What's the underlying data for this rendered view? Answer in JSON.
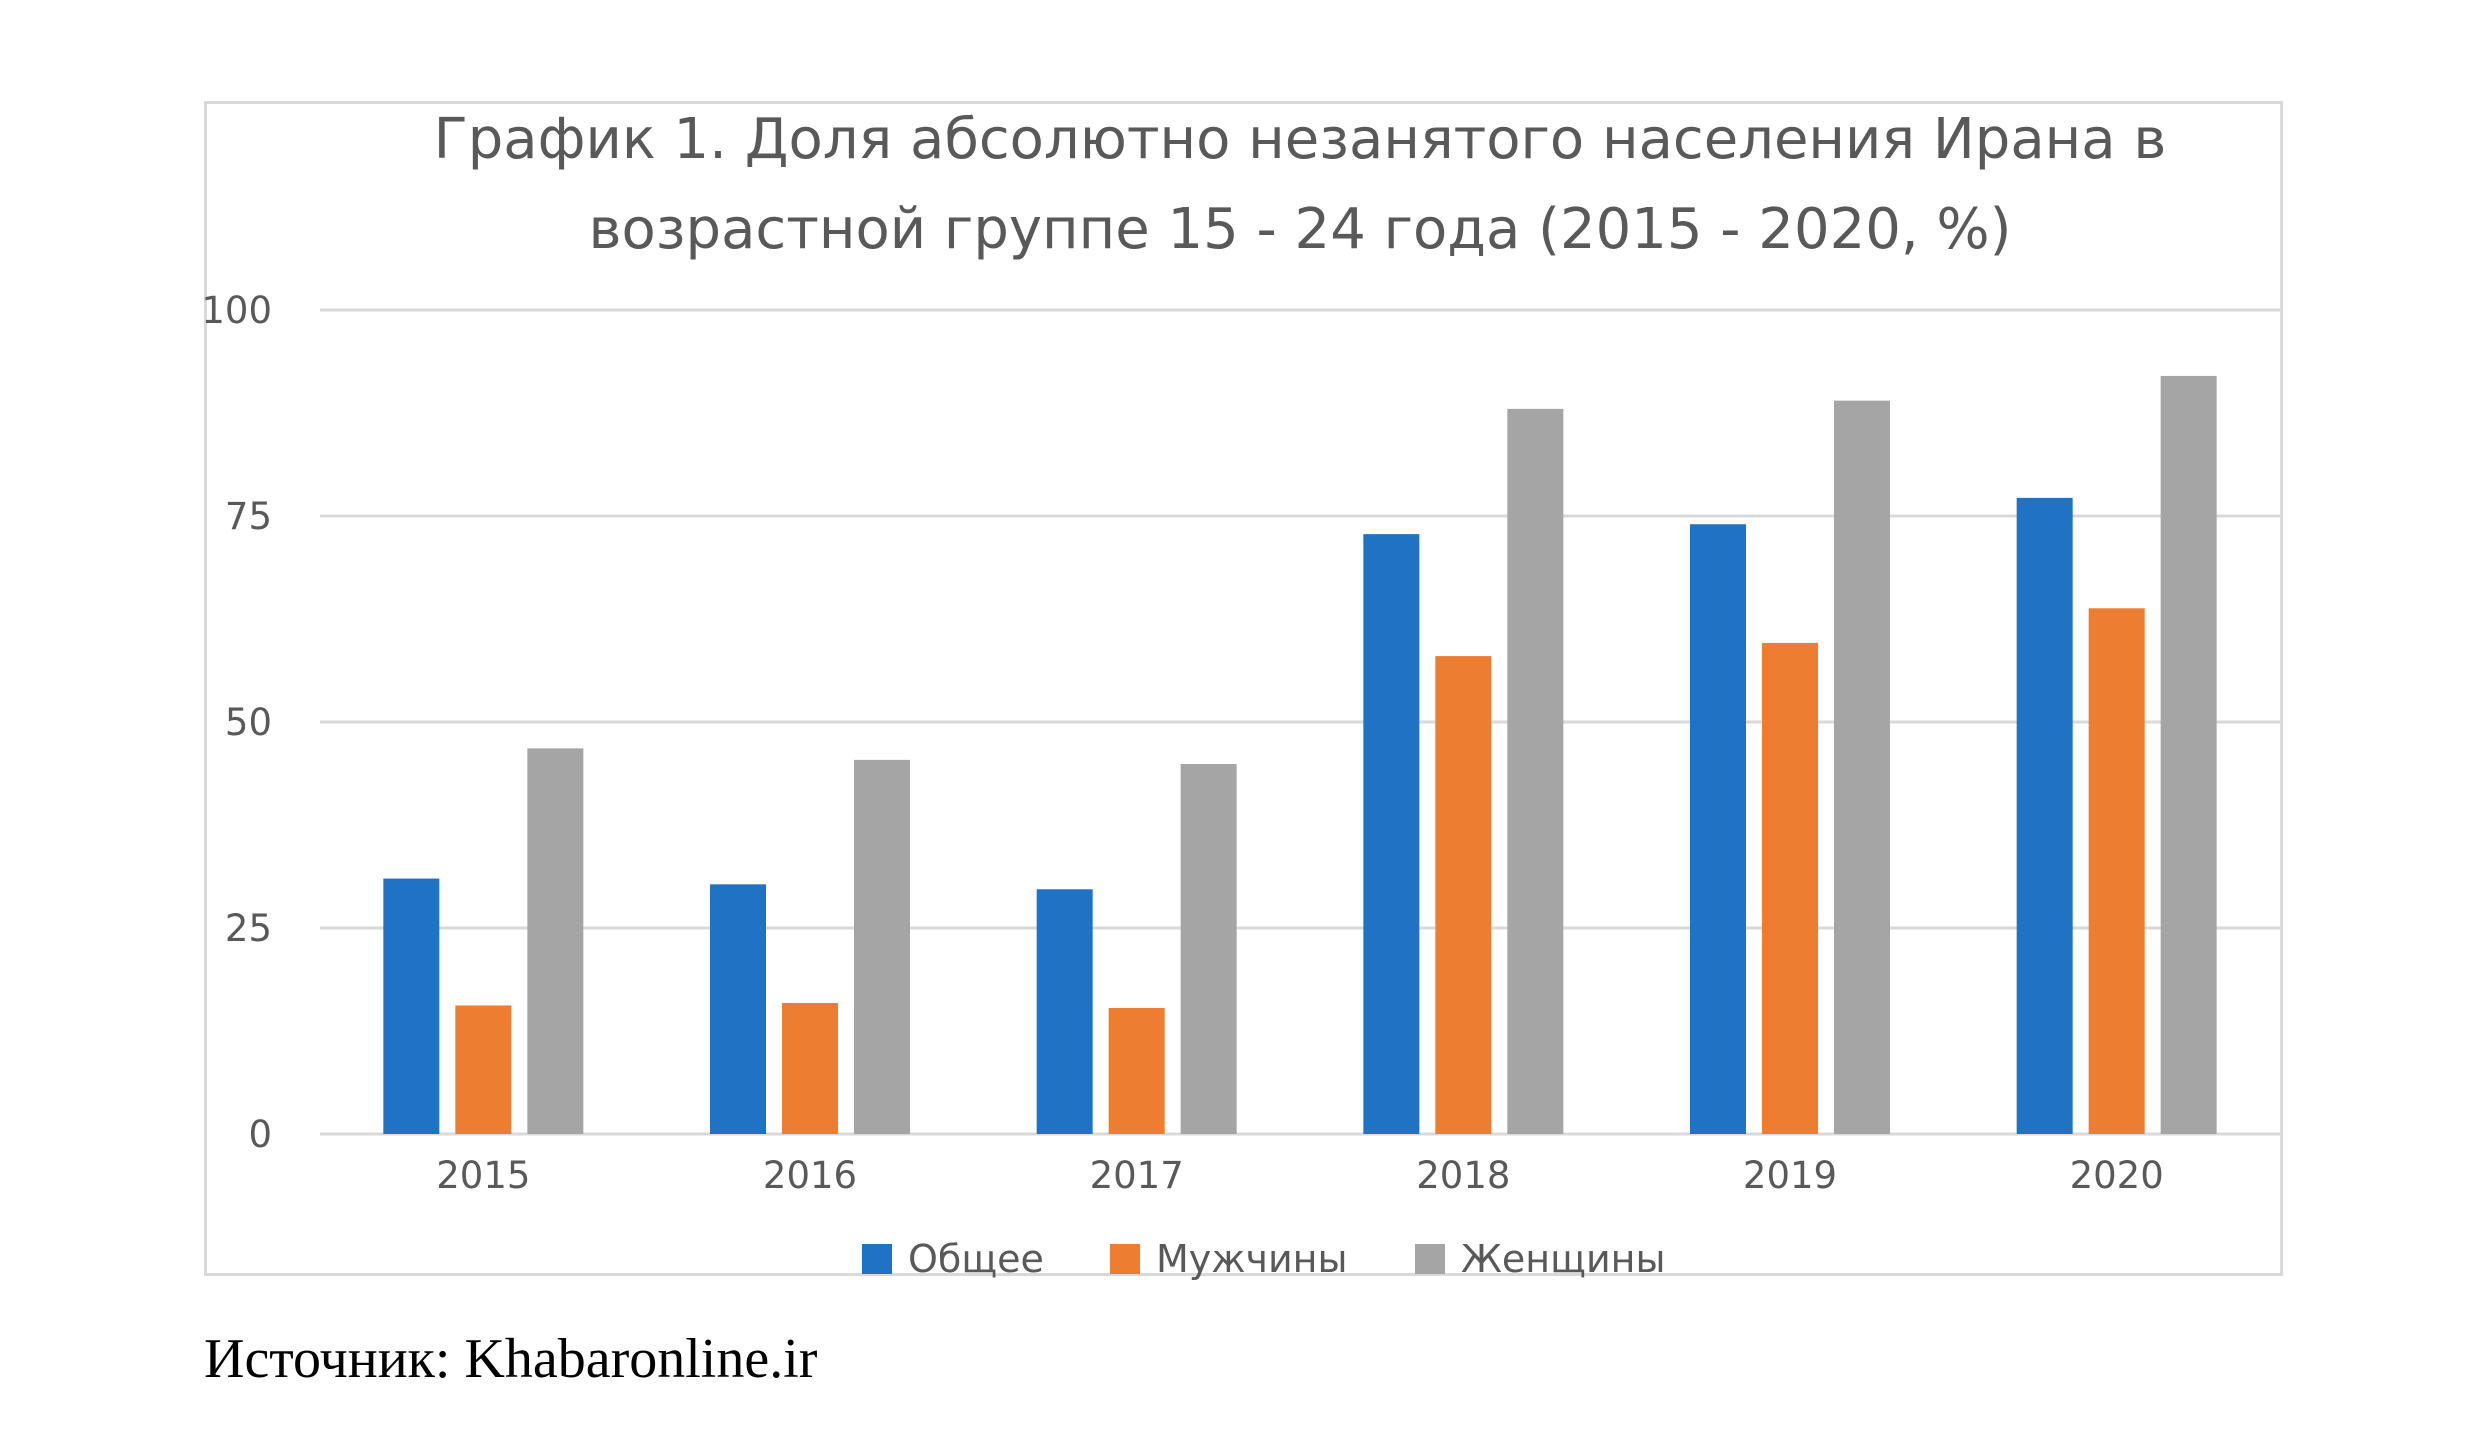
{
  "chart_data": {
    "type": "bar",
    "title": [
      "График 1. Доля абсолютно незанятого населения Ирана в",
      "возрастной группе 15 - 24 года (2015 - 2020, %)"
    ],
    "categories": [
      "2015",
      "2016",
      "2017",
      "2018",
      "2019",
      "2020"
    ],
    "series": [
      {
        "name": "Общее",
        "color": "#1f72c4",
        "values": [
          31,
          30.3,
          29.7,
          72.8,
          74,
          77.2
        ]
      },
      {
        "name": "Мужчины",
        "color": "#ed7d31",
        "values": [
          15.6,
          15.9,
          15.3,
          58,
          59.6,
          63.8
        ]
      },
      {
        "name": "Женщины",
        "color": "#a5a5a5",
        "values": [
          46.8,
          45.4,
          44.9,
          88,
          89,
          92
        ]
      }
    ],
    "ylim": [
      0,
      100
    ],
    "yticks": [
      0,
      25,
      50,
      75,
      100
    ],
    "grid": true,
    "legend_position": "bottom",
    "gridline_color": "#d9d9d9"
  },
  "source": "Источник: Khabaronline.ir"
}
